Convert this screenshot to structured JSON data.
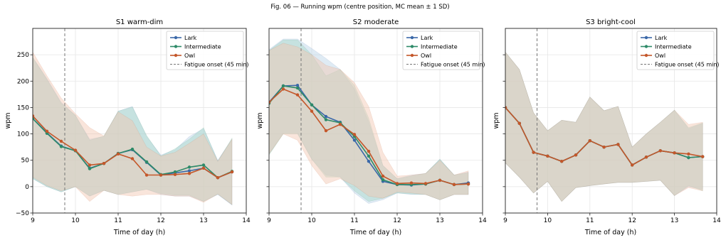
{
  "figure": {
    "suptitle": "Fig. 06 — Running wpm (centre position, MC mean ± 1 SD)",
    "colors": {
      "Lark": "#3a68a8",
      "Intermediate": "#2e8a68",
      "Owl": "#c4572a",
      "Lark_band": "#b9d3e6",
      "Intermediate_band": "#a9d6c8",
      "Owl_band": "#f2c6b0",
      "overlap": "#c1c1b9",
      "fatigue": "#777777"
    }
  },
  "chart_data": [
    {
      "type": "line",
      "title": "S1 warm-dim",
      "xlabel": "Time of day (h)",
      "ylabel": "wpm",
      "xlim": [
        9,
        14
      ],
      "ylim": [
        -50,
        300
      ],
      "xticks": [
        "9",
        "10",
        "11",
        "12",
        "13",
        "14"
      ],
      "yticks": [
        "−50",
        "0",
        "50",
        "100",
        "150",
        "200",
        "250"
      ],
      "grid": true,
      "legend": {
        "placement": "top-right",
        "entries": [
          "Lark",
          "Intermediate",
          "Owl",
          "Fatigue onset (45 min)"
        ]
      },
      "fatigue_onset_x": 9.75,
      "x": [
        9,
        9.333,
        9.667,
        10,
        10.333,
        10.667,
        11,
        11.333,
        11.667,
        12,
        12.333,
        12.667,
        13,
        13.333,
        13.667
      ],
      "series": [
        {
          "name": "Lark",
          "values": [
            129,
            102,
            77,
            68,
            35,
            44,
            63,
            70,
            46,
            22,
            26,
            30,
            35,
            17,
            28
          ],
          "upper": [
            245,
            205,
            160,
            135,
            90,
            95,
            143,
            152,
            95,
            60,
            70,
            95,
            110,
            50,
            90
          ],
          "lower": [
            15,
            0,
            -10,
            0,
            -18,
            -7,
            -15,
            -10,
            -5,
            -15,
            -18,
            -18,
            -28,
            -15,
            -35
          ]
        },
        {
          "name": "Intermediate",
          "values": [
            129,
            101,
            76,
            68,
            34,
            44,
            63,
            71,
            47,
            23,
            28,
            37,
            41,
            17,
            29
          ],
          "upper": [
            245,
            203,
            158,
            135,
            88,
            96,
            143,
            151,
            97,
            58,
            72,
            90,
            112,
            48,
            92
          ],
          "lower": [
            15,
            0,
            -10,
            0,
            -18,
            -7,
            -15,
            -10,
            -5,
            -13,
            -16,
            -16,
            -28,
            -14,
            -34
          ]
        },
        {
          "name": "Owl",
          "values": [
            134,
            105,
            86,
            69,
            41,
            44,
            62,
            53,
            22,
            22,
            23,
            25,
            35,
            17,
            28
          ],
          "upper": [
            255,
            210,
            168,
            138,
            112,
            96,
            142,
            125,
            75,
            58,
            65,
            82,
            100,
            48,
            90
          ],
          "lower": [
            18,
            2,
            -8,
            0,
            -28,
            -7,
            -15,
            -18,
            -15,
            -15,
            -18,
            -18,
            -30,
            -14,
            -34
          ]
        }
      ]
    },
    {
      "type": "line",
      "title": "S2 moderate",
      "xlabel": "Time of day (h)",
      "ylabel": "wpm",
      "xlim": [
        9,
        14
      ],
      "ylim": [
        -50,
        300
      ],
      "xticks": [
        "9",
        "10",
        "11",
        "12",
        "13",
        "14"
      ],
      "yticks": [
        "−50",
        "0",
        "50",
        "100",
        "150",
        "200",
        "250"
      ],
      "grid": true,
      "legend": {
        "placement": "top-right",
        "entries": [
          "Lark",
          "Intermediate",
          "Owl",
          "Fatigue onset (45 min)"
        ]
      },
      "fatigue_onset_x": 9.75,
      "x": [
        9,
        9.333,
        9.667,
        10,
        10.333,
        10.667,
        11,
        11.333,
        11.667,
        12,
        12.333,
        12.667,
        13,
        13.333,
        13.667
      ],
      "series": [
        {
          "name": "Lark",
          "values": [
            160,
            191,
            192,
            155,
            133,
            122,
            88,
            48,
            10,
            4,
            3,
            5,
            12,
            4,
            7
          ],
          "upper": [
            260,
            280,
            280,
            262,
            243,
            222,
            185,
            123,
            40,
            15,
            22,
            25,
            52,
            22,
            28
          ],
          "lower": [
            62,
            102,
            102,
            52,
            22,
            18,
            -12,
            -32,
            -25,
            -12,
            -15,
            -15,
            -25,
            -15,
            -15
          ]
        },
        {
          "name": "Intermediate",
          "values": [
            158,
            191,
            187,
            155,
            127,
            121,
            95,
            58,
            13,
            4,
            4,
            5,
            12,
            4,
            5
          ],
          "upper": [
            258,
            278,
            278,
            250,
            210,
            222,
            192,
            130,
            40,
            15,
            20,
            25,
            52,
            22,
            26
          ],
          "lower": [
            60,
            100,
            100,
            52,
            18,
            18,
            -8,
            -28,
            -22,
            -12,
            -14,
            -15,
            -25,
            -15,
            -15
          ]
        },
        {
          "name": "Owl",
          "values": [
            160,
            185,
            174,
            143,
            106,
            118,
            99,
            67,
            20,
            6,
            7,
            6,
            12,
            4,
            5
          ],
          "upper": [
            258,
            272,
            265,
            250,
            230,
            222,
            197,
            152,
            65,
            20,
            22,
            25,
            50,
            22,
            30
          ],
          "lower": [
            62,
            100,
            88,
            40,
            5,
            15,
            2,
            -18,
            -22,
            -10,
            -12,
            -15,
            -25,
            -15,
            -15
          ]
        }
      ]
    },
    {
      "type": "line",
      "title": "S3 bright-cool",
      "xlabel": "Time of day (h)",
      "ylabel": "wpm",
      "xlim": [
        9,
        14
      ],
      "ylim": [
        -50,
        300
      ],
      "xticks": [
        "9",
        "10",
        "11",
        "12",
        "13",
        "14"
      ],
      "yticks": [
        "−50",
        "0",
        "50",
        "100",
        "150",
        "200",
        "250"
      ],
      "grid": true,
      "legend": {
        "placement": "top-right",
        "entries": [
          "Lark",
          "Intermediate",
          "Owl",
          "Fatigue onset (45 min)"
        ]
      },
      "fatigue_onset_x": 9.75,
      "x": [
        9,
        9.333,
        9.667,
        10,
        10.333,
        10.667,
        11,
        11.333,
        11.667,
        12,
        12.333,
        12.667,
        13,
        13.333,
        13.667
      ],
      "series": [
        {
          "name": "Lark",
          "values": [
            150,
            120,
            65,
            58,
            48,
            60,
            87,
            75,
            80,
            41,
            56,
            68,
            64,
            55,
            57
          ],
          "upper": [
            255,
            222,
            140,
            106,
            126,
            122,
            170,
            144,
            152,
            75,
            100,
            122,
            145,
            110,
            120
          ],
          "lower": [
            45,
            18,
            -12,
            10,
            -28,
            -2,
            2,
            5,
            8,
            8,
            10,
            12,
            -17,
            0,
            -5
          ]
        },
        {
          "name": "Intermediate",
          "values": [
            150,
            120,
            65,
            58,
            48,
            60,
            87,
            75,
            80,
            41,
            56,
            68,
            64,
            55,
            57
          ],
          "upper": [
            255,
            222,
            140,
            106,
            126,
            122,
            170,
            144,
            152,
            75,
            100,
            122,
            145,
            112,
            121
          ],
          "lower": [
            45,
            18,
            -12,
            10,
            -28,
            -2,
            2,
            5,
            8,
            8,
            10,
            12,
            -17,
            2,
            -8
          ]
        },
        {
          "name": "Owl",
          "values": [
            150,
            120,
            65,
            58,
            48,
            60,
            87,
            75,
            80,
            41,
            56,
            68,
            64,
            62,
            57
          ],
          "upper": [
            255,
            222,
            140,
            106,
            126,
            122,
            170,
            144,
            152,
            75,
            100,
            122,
            145,
            118,
            122
          ],
          "lower": [
            45,
            18,
            -12,
            10,
            -28,
            -2,
            2,
            5,
            8,
            8,
            10,
            12,
            -17,
            -2,
            -8
          ]
        }
      ]
    }
  ]
}
